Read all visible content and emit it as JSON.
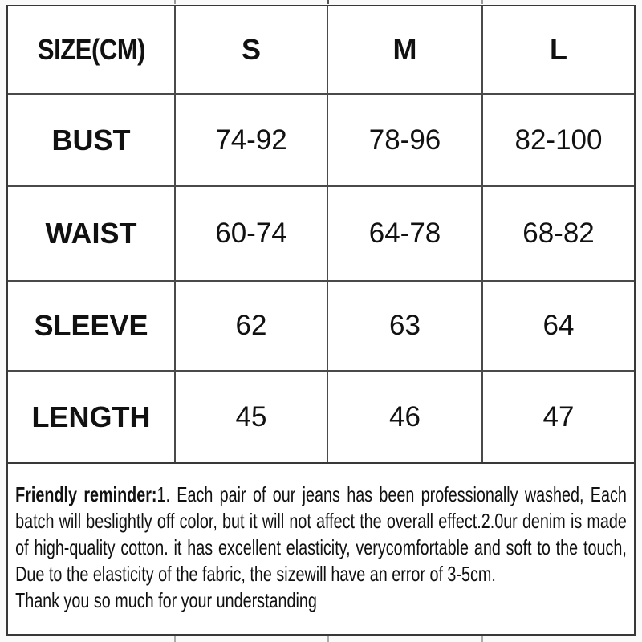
{
  "table": {
    "header": {
      "col0": "SIZE(CM)",
      "col1": "S",
      "col2": "M",
      "col3": "L"
    },
    "rows": [
      {
        "label": "BUST",
        "s": "74-92",
        "m": "78-96",
        "l": "82-100"
      },
      {
        "label": "WAIST",
        "s": "60-74",
        "m": "64-78",
        "l": "68-82"
      },
      {
        "label": "SLEEVE",
        "s": "62",
        "m": "63",
        "l": "64"
      },
      {
        "label": "LENGTH",
        "s": "45",
        "m": "46",
        "l": "47"
      }
    ]
  },
  "reminder": {
    "lead": "Friendly reminder:",
    "body": "1. Each pair of our jeans has been professionally washed, Each batch will beslightly off color, but it will not affect the overall effect.2.0ur denim is made of high-quality cotton. it has excellent elasticity, verycomfortable and soft to the touch, Due to the elasticity of the fabric, the sizewill have an error of 3-5cm.",
    "thanks": "Thank you so much for your understanding"
  }
}
